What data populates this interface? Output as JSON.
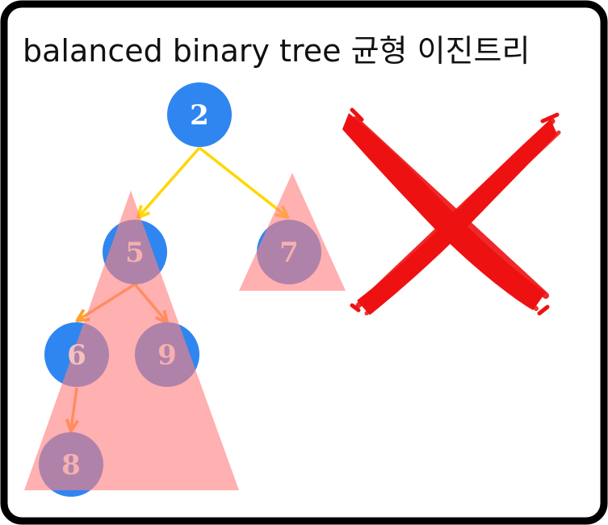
{
  "title": "balanced binary tree 균형 이진트리",
  "nodes": [
    {
      "id": "n2",
      "label": "2"
    },
    {
      "id": "n5",
      "label": "5"
    },
    {
      "id": "n7",
      "label": "7"
    },
    {
      "id": "n6",
      "label": "6"
    },
    {
      "id": "n9",
      "label": "9"
    },
    {
      "id": "n8",
      "label": "8"
    }
  ],
  "edges": [
    {
      "from": "n2",
      "to": "n5"
    },
    {
      "from": "n2",
      "to": "n7"
    },
    {
      "from": "n5",
      "to": "n6"
    },
    {
      "from": "n5",
      "to": "n9"
    },
    {
      "from": "n6",
      "to": "n8"
    }
  ],
  "colors": {
    "frame": "#000000",
    "background": "#ffffff",
    "node_fill": "#2f86f0",
    "node_text_white": "#ffffff",
    "node_text_pink": "#f6b0b0",
    "subtree_highlight": "#ff8080",
    "edge_root": "#ffd700",
    "edge_child": "#ffa030",
    "cross_mark": "#ee1111"
  },
  "cross_mark_icon": "red-x-cross-icon"
}
